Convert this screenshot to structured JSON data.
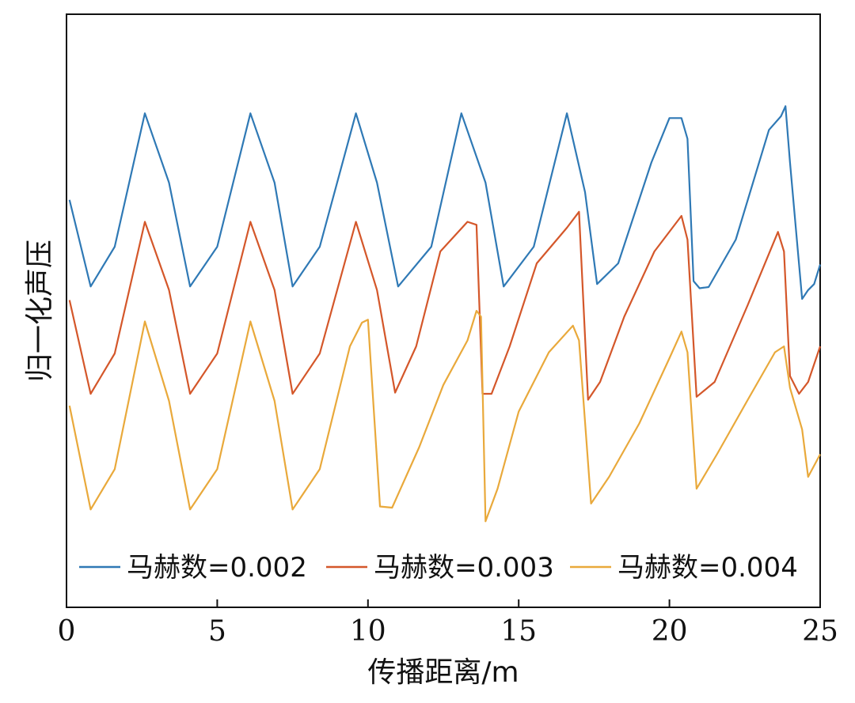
{
  "chart_data": {
    "type": "line",
    "title": "",
    "xlabel": "传播距离/m",
    "ylabel": "归一化声压",
    "xlim": [
      0,
      25
    ],
    "ylim": [
      0,
      1
    ],
    "y_ticks_shown": false,
    "grid": false,
    "legend_position": "bottom",
    "x_ticks": [
      {
        "value": 0,
        "label": "0"
      },
      {
        "value": 5,
        "label": "5"
      },
      {
        "value": 10,
        "label": "10"
      },
      {
        "value": 15,
        "label": "15"
      },
      {
        "value": 20,
        "label": "20"
      },
      {
        "value": 25,
        "label": "25"
      }
    ],
    "series": [
      {
        "name": "马赫数=0.002",
        "color": "#2f79b5",
        "x": [
          0.1,
          0.8,
          1.6,
          2.6,
          3.4,
          4.1,
          5.0,
          6.1,
          6.9,
          7.5,
          8.4,
          9.6,
          10.3,
          11.0,
          12.1,
          13.1,
          13.9,
          14.5,
          15.5,
          16.6,
          17.2,
          17.6,
          18.3,
          19.4,
          20.0,
          20.4,
          20.6,
          20.8,
          21.0,
          21.3,
          22.2,
          23.3,
          23.7,
          23.85,
          24.0,
          24.4,
          24.6,
          24.8,
          25.0
        ],
        "y": [
          0.687,
          0.541,
          0.608,
          0.833,
          0.716,
          0.541,
          0.608,
          0.833,
          0.716,
          0.541,
          0.608,
          0.833,
          0.716,
          0.541,
          0.608,
          0.833,
          0.716,
          0.541,
          0.608,
          0.833,
          0.7,
          0.545,
          0.58,
          0.75,
          0.825,
          0.825,
          0.79,
          0.55,
          0.538,
          0.54,
          0.62,
          0.805,
          0.828,
          0.845,
          0.75,
          0.52,
          0.535,
          0.545,
          0.578
        ]
      },
      {
        "name": "马赫数=0.003",
        "color": "#d4572a",
        "x": [
          0.1,
          0.8,
          1.6,
          2.6,
          3.4,
          4.1,
          5.0,
          6.1,
          6.9,
          7.5,
          8.4,
          9.6,
          10.3,
          10.9,
          11.6,
          12.4,
          13.3,
          13.6,
          13.8,
          14.1,
          14.7,
          15.6,
          16.6,
          17.0,
          17.3,
          17.7,
          18.5,
          19.5,
          20.4,
          20.6,
          20.9,
          21.5,
          22.6,
          23.6,
          23.8,
          24.0,
          24.3,
          24.6,
          25.0
        ],
        "y": [
          0.518,
          0.36,
          0.428,
          0.65,
          0.535,
          0.36,
          0.428,
          0.65,
          0.535,
          0.36,
          0.428,
          0.65,
          0.535,
          0.362,
          0.44,
          0.6,
          0.65,
          0.645,
          0.36,
          0.36,
          0.44,
          0.58,
          0.64,
          0.667,
          0.35,
          0.38,
          0.49,
          0.6,
          0.66,
          0.62,
          0.355,
          0.38,
          0.51,
          0.633,
          0.6,
          0.39,
          0.36,
          0.38,
          0.44
        ]
      },
      {
        "name": "马赫数=0.004",
        "color": "#e9a93b",
        "x": [
          0.1,
          0.8,
          1.6,
          2.6,
          3.4,
          4.1,
          5.0,
          6.1,
          6.9,
          7.5,
          8.4,
          9.4,
          9.8,
          10.0,
          10.4,
          10.8,
          11.7,
          12.5,
          13.3,
          13.6,
          13.75,
          13.9,
          14.3,
          15.0,
          16.0,
          16.8,
          17.0,
          17.4,
          18.0,
          19.0,
          20.0,
          20.4,
          20.6,
          20.9,
          21.6,
          22.6,
          23.5,
          23.8,
          24.0,
          24.4,
          24.6,
          25.0
        ],
        "y": [
          0.34,
          0.165,
          0.233,
          0.482,
          0.348,
          0.165,
          0.233,
          0.482,
          0.348,
          0.165,
          0.233,
          0.44,
          0.48,
          0.485,
          0.17,
          0.168,
          0.27,
          0.375,
          0.45,
          0.5,
          0.49,
          0.145,
          0.2,
          0.33,
          0.43,
          0.475,
          0.45,
          0.175,
          0.22,
          0.31,
          0.42,
          0.465,
          0.43,
          0.2,
          0.26,
          0.35,
          0.43,
          0.44,
          0.37,
          0.3,
          0.22,
          0.258
        ]
      }
    ]
  }
}
